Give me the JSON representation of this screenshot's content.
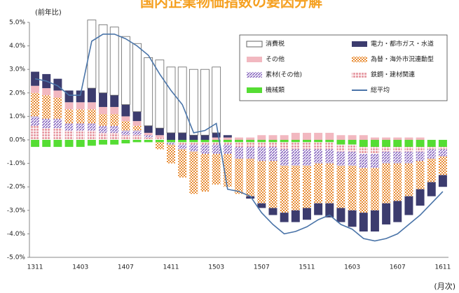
{
  "chart_data": {
    "type": "stacked_bar_line",
    "title": "国内企業物価指数の要因分解",
    "y_label": "(前年比)",
    "x_label": "(月次)",
    "categories": [
      "1311",
      null,
      null,
      null,
      "1403",
      null,
      null,
      null,
      "1407",
      null,
      null,
      null,
      "1411",
      null,
      null,
      null,
      "1503",
      null,
      null,
      null,
      "1507",
      null,
      null,
      null,
      "1511",
      null,
      null,
      null,
      "1603",
      null,
      null,
      null,
      "1607",
      null,
      null,
      null,
      "1611"
    ],
    "ylim": [
      -5,
      5
    ],
    "yticks": [
      {
        "value": 5,
        "label": "5.0%"
      },
      {
        "value": 4,
        "label": "4.0%"
      },
      {
        "value": 3,
        "label": "3.0%"
      },
      {
        "value": 2,
        "label": "2.0%"
      },
      {
        "value": 1,
        "label": "1.0%"
      },
      {
        "value": 0,
        "label": "0.0%"
      },
      {
        "value": -1,
        "label": "-1.0%"
      },
      {
        "value": -2,
        "label": "-2.0%"
      },
      {
        "value": -3,
        "label": "-3.0%"
      },
      {
        "value": -4,
        "label": "-4.0%"
      },
      {
        "value": -5,
        "label": "-5.0%"
      }
    ],
    "grid": false,
    "legend": "top-right",
    "series": [
      {
        "name": "機械類",
        "color": "#55dd33",
        "values": [
          -0.3,
          -0.3,
          -0.3,
          -0.3,
          -0.3,
          -0.25,
          -0.2,
          -0.2,
          -0.15,
          -0.1,
          -0.1,
          -0.1,
          -0.1,
          -0.1,
          -0.1,
          -0.1,
          -0.1,
          -0.1,
          -0.1,
          -0.1,
          -0.1,
          -0.1,
          -0.1,
          -0.1,
          -0.1,
          -0.1,
          -0.1,
          -0.2,
          -0.2,
          -0.3,
          -0.3,
          -0.3,
          -0.3,
          -0.3,
          -0.3,
          -0.3,
          -0.3
        ]
      },
      {
        "name": "鉄鋼・建材関連",
        "color": "#e8a0a8",
        "values": [
          0.6,
          0.5,
          0.5,
          0.4,
          0.4,
          0.4,
          0.3,
          0.3,
          0.2,
          0.2,
          0.1,
          0.1,
          0,
          -0.1,
          -0.1,
          -0.1,
          -0.1,
          -0.1,
          -0.2,
          -0.2,
          -0.2,
          -0.2,
          -0.3,
          -0.3,
          -0.3,
          -0.3,
          -0.3,
          -0.3,
          -0.3,
          -0.3,
          -0.3,
          -0.2,
          -0.2,
          -0.2,
          -0.2,
          -0.1,
          -0.1
        ]
      },
      {
        "name": "素材(その他)",
        "color": "#8a6ac0",
        "values": [
          0.4,
          0.4,
          0.4,
          0.3,
          0.3,
          0.3,
          0.3,
          0.3,
          0.2,
          0.2,
          0.1,
          0,
          -0.1,
          -0.2,
          -0.3,
          -0.4,
          -0.4,
          -0.4,
          -0.5,
          -0.5,
          -0.6,
          -0.6,
          -0.7,
          -0.7,
          -0.7,
          -0.6,
          -0.6,
          -0.6,
          -0.6,
          -0.6,
          -0.6,
          -0.5,
          -0.5,
          -0.5,
          -0.4,
          -0.4,
          -0.3
        ]
      },
      {
        "name": "為替・海外市況連動型",
        "color": "#e88a30",
        "values": [
          1.0,
          1.0,
          0.9,
          0.6,
          0.6,
          0.6,
          0.5,
          0.5,
          0.4,
          0.2,
          0,
          -0.3,
          -0.8,
          -1.2,
          -1.8,
          -1.6,
          -1.3,
          -1.4,
          -1.5,
          -1.6,
          -1.8,
          -2.0,
          -2.0,
          -1.9,
          -1.8,
          -1.7,
          -1.7,
          -1.8,
          -1.9,
          -1.9,
          -1.8,
          -1.7,
          -1.6,
          -1.4,
          -1.2,
          -1.0,
          -0.8
        ]
      },
      {
        "name": "その他",
        "color": "#f2b8c0",
        "values": [
          0.3,
          0.3,
          0.3,
          0.3,
          0.3,
          0.3,
          0.3,
          0.3,
          0.2,
          0.2,
          0.1,
          0.1,
          0,
          0,
          0,
          0,
          0.1,
          0.1,
          0.1,
          0.1,
          0.2,
          0.2,
          0.2,
          0.3,
          0.3,
          0.3,
          0.3,
          0.2,
          0.2,
          0.2,
          0.1,
          0.1,
          0.1,
          0.1,
          0.1,
          0,
          0
        ]
      },
      {
        "name": "電力・都市ガス・水道",
        "color": "#3c3c6e",
        "values": [
          0.6,
          0.6,
          0.5,
          0.5,
          0.5,
          0.6,
          0.6,
          0.5,
          0.5,
          0.4,
          0.3,
          0.3,
          0.3,
          0.3,
          0.2,
          0.2,
          0.2,
          0.1,
          0,
          -0.1,
          -0.2,
          -0.3,
          -0.4,
          -0.5,
          -0.5,
          -0.5,
          -0.6,
          -0.6,
          -0.7,
          -0.8,
          -0.9,
          -0.9,
          -0.9,
          -0.8,
          -0.7,
          -0.6,
          -0.5
        ]
      },
      {
        "name": "消費税",
        "color": "#ffffff",
        "values": [
          0,
          0,
          0,
          0,
          0,
          2.9,
          2.9,
          2.9,
          2.9,
          2.9,
          2.9,
          2.9,
          2.8,
          2.8,
          2.8,
          2.8,
          2.8,
          0,
          0,
          0,
          0,
          0,
          0,
          0,
          0,
          0,
          0,
          0,
          0,
          0,
          0,
          0,
          0,
          0,
          0,
          0,
          0
        ]
      },
      {
        "name": "総平均",
        "color": "#4a74a8",
        "type": "line",
        "values": [
          2.6,
          2.5,
          2.3,
          1.9,
          1.9,
          4.2,
          4.5,
          4.5,
          4.3,
          4.0,
          3.6,
          2.8,
          2.1,
          1.5,
          0.3,
          0.4,
          0.7,
          -2.1,
          -2.2,
          -2.4,
          -3.1,
          -3.6,
          -4.0,
          -3.9,
          -3.7,
          -3.4,
          -3.2,
          -3.6,
          -3.8,
          -4.2,
          -4.3,
          -4.2,
          -4.0,
          -3.6,
          -3.2,
          -2.7,
          -2.2
        ]
      }
    ]
  }
}
